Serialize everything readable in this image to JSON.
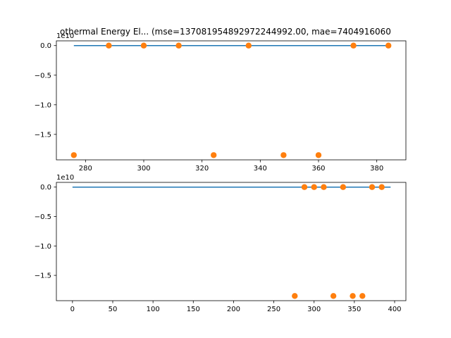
{
  "chart_data": {
    "title": "othermal Energy El... (mse=137081954892972244992.00, mae=7404916060",
    "subplots": [
      {
        "type": "line+scatter",
        "offset_label": "1e10",
        "xlim": [
          270,
          390
        ],
        "ylim": [
          -1.93,
          0.08
        ],
        "xticks": [
          280,
          300,
          320,
          340,
          360,
          380
        ],
        "yticks": [
          0.0,
          -0.5,
          -1.0,
          -1.5
        ],
        "ytick_labels": [
          "0.0",
          "−0.5",
          "−1.0",
          "−1.5"
        ],
        "series": [
          {
            "type": "line",
            "color": "#1f77b4",
            "x": [
              276,
              384
            ],
            "y": [
              0.0,
              0.0
            ]
          },
          {
            "type": "scatter",
            "color": "#ff7f0e",
            "x": [
              276,
              288,
              300,
              312,
              324,
              336,
              348,
              360,
              372,
              384
            ],
            "y": [
              -1.85,
              0.0,
              0.0,
              0.0,
              -1.85,
              0.0,
              -1.85,
              -1.85,
              0.0,
              0.0
            ]
          }
        ]
      },
      {
        "type": "line+scatter",
        "offset_label": "1e10",
        "xlim": [
          -20,
          414
        ],
        "ylim": [
          -1.93,
          0.08
        ],
        "xticks": [
          0,
          50,
          100,
          150,
          200,
          250,
          300,
          350,
          400
        ],
        "yticks": [
          0.0,
          -0.5,
          -1.0,
          -1.5
        ],
        "ytick_labels": [
          "0.0",
          "−0.5",
          "−1.0",
          "−1.5"
        ],
        "series": [
          {
            "type": "line",
            "color": "#1f77b4",
            "x": [
              0,
              395
            ],
            "y": [
              0.0,
              0.0
            ]
          },
          {
            "type": "scatter",
            "color": "#ff7f0e",
            "x": [
              276,
              288,
              300,
              312,
              324,
              336,
              348,
              360,
              372,
              384
            ],
            "y": [
              -1.85,
              0.0,
              0.0,
              0.0,
              -1.85,
              0.0,
              -1.85,
              -1.85,
              0.0,
              0.0
            ]
          }
        ]
      }
    ]
  }
}
